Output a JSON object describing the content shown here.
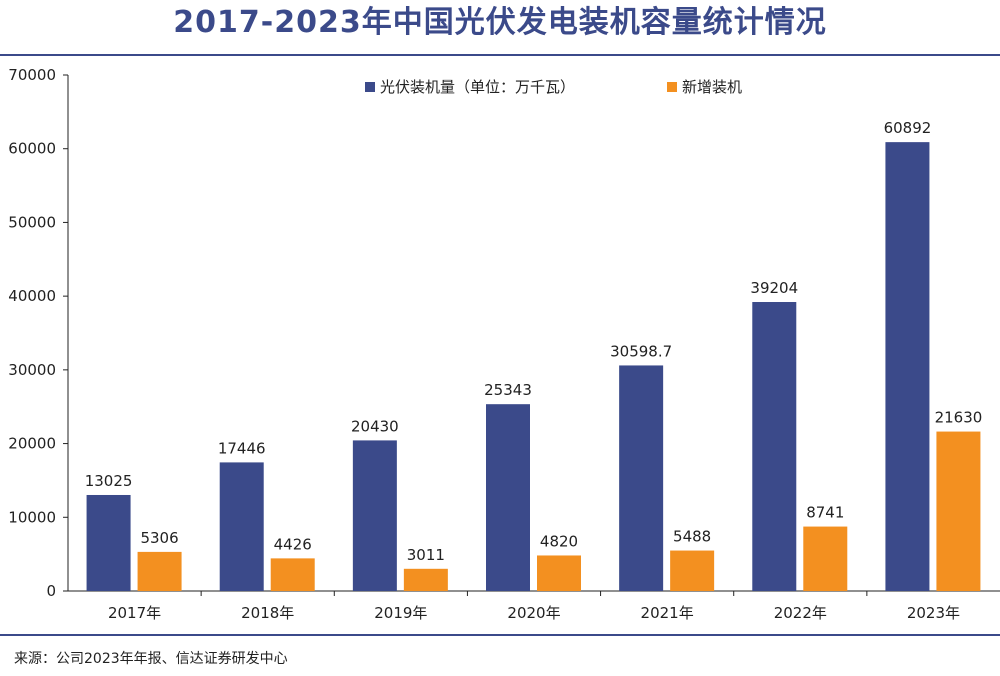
{
  "title": "2017-2023年中国光伏发电装机容量统计情况",
  "source": "来源：公司2023年年报、信达证券研发中心",
  "colors": {
    "series1": "#3b4a8a",
    "series2": "#f39020",
    "title": "#3b4a8a",
    "rule": "#3b4a8a"
  },
  "chart_data": {
    "type": "bar",
    "title": "2017-2023年中国光伏发电装机容量统计情况",
    "categories": [
      "2017年",
      "2018年",
      "2019年",
      "2020年",
      "2021年",
      "2022年",
      "2023年"
    ],
    "series": [
      {
        "name": "光伏装机量（单位：万千瓦）",
        "values": [
          13025,
          17446,
          20430,
          25343,
          30598.7,
          39204,
          60892
        ],
        "labels": [
          "13025",
          "17446",
          "20430",
          "25343",
          "30598.7",
          "39204",
          "60892"
        ]
      },
      {
        "name": "新增装机",
        "values": [
          5306,
          4426,
          3011,
          4820,
          5488,
          8741,
          21630
        ],
        "labels": [
          "5306",
          "4426",
          "3011",
          "4820",
          "5488",
          "8741",
          "21630"
        ]
      }
    ],
    "ylim": [
      0,
      70000
    ],
    "yticks": [
      0,
      10000,
      20000,
      30000,
      40000,
      50000,
      60000,
      70000
    ],
    "grid": false,
    "legend": "top-center",
    "xlabel": "",
    "ylabel": ""
  }
}
